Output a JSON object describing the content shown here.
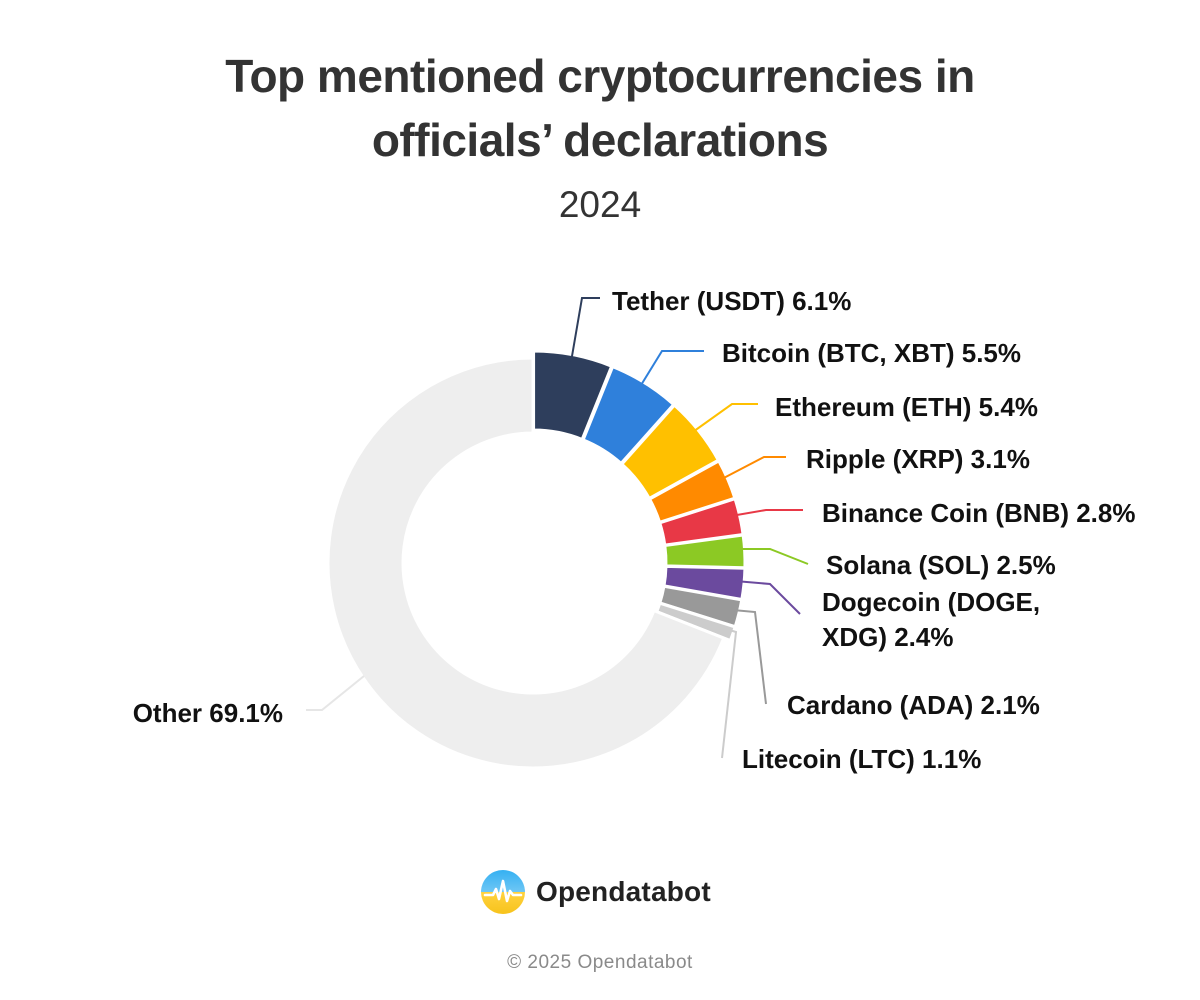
{
  "chart_data": {
    "type": "pie",
    "variant": "donut",
    "title_lines": [
      "Top mentioned cryptocurrencies in",
      "officials’ declarations"
    ],
    "subtitle": "2024",
    "unit": "%",
    "slices": [
      {
        "label": "Tether (USDT)",
        "value": 6.1,
        "value_text": "6.1%",
        "color": "#2e3e5c"
      },
      {
        "label": "Bitcoin (BTC, XBT)",
        "value": 5.5,
        "value_text": "5.5%",
        "color": "#2f80db"
      },
      {
        "label": "Ethereum (ETH)",
        "value": 5.4,
        "value_text": "5.4%",
        "color": "#ffc000"
      },
      {
        "label": "Ripple (XRP)",
        "value": 3.1,
        "value_text": "3.1%",
        "color": "#ff8a00"
      },
      {
        "label": "Binance Coin (BNB)",
        "value": 2.8,
        "value_text": "2.8%",
        "color": "#e83846"
      },
      {
        "label": "Solana (SOL)",
        "value": 2.5,
        "value_text": "2.5%",
        "color": "#8cc924"
      },
      {
        "label": "Dogecoin (DOGE, XDG)",
        "label_lines": [
          "Dogecoin (DOGE,",
          "XDG) 2.4%"
        ],
        "value": 2.4,
        "value_text": "2.4%",
        "color": "#6b4a9e"
      },
      {
        "label": "Cardano (ADA)",
        "value": 2.1,
        "value_text": "2.1%",
        "color": "#999999"
      },
      {
        "label": "Litecoin (LTC)",
        "value": 1.1,
        "value_text": "1.1%",
        "color": "#cccccc"
      },
      {
        "label": "Other",
        "value": 69.1,
        "value_text": "69.1%",
        "color": "#eeeeee",
        "leader_color": "#e6e6e6"
      }
    ]
  },
  "footer": {
    "brand": "Opendatabot",
    "copyright": "© 2025 Opendatabot"
  }
}
